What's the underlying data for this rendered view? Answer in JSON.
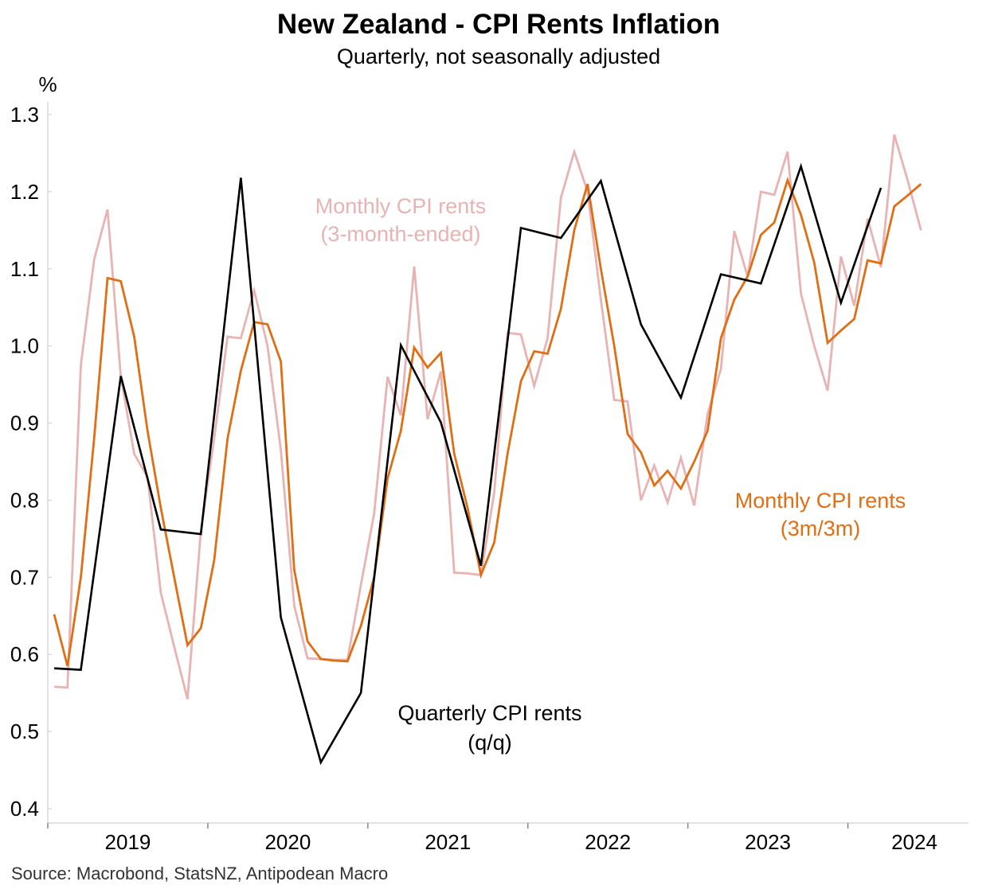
{
  "chart_data": {
    "type": "line",
    "title": "New Zealand - CPI Rents Inflation",
    "subtitle": "Quarterly, not seasonally adjusted",
    "ylabel": "%",
    "source": "Source: Macrobond, StatsNZ, Antipodean Macro",
    "ylim": [
      0.4,
      1.3
    ],
    "yticks": [
      "1.3",
      "1.2",
      "1.1",
      "1.0",
      "0.9",
      "0.8",
      "0.7",
      "0.6",
      "0.5",
      "0.4"
    ],
    "xlim": [
      "2019-01",
      "2024-07"
    ],
    "xticks": [
      "2019",
      "2020",
      "2021",
      "2022",
      "2023",
      "2024"
    ],
    "grid": false,
    "colors": {
      "quarterly": "#000000",
      "monthly_3m": "#E8B3B3",
      "monthly_3m3m": "#E06E14"
    },
    "annotations": {
      "pink": [
        "Monthly CPI rents",
        "(3-month-ended)"
      ],
      "orange": [
        "Monthly CPI rents",
        "(3m/3m)"
      ],
      "black": [
        "Quarterly CPI rents",
        "(q/q)"
      ]
    },
    "series": [
      {
        "key": "monthly_3m",
        "x": [
          "2019-01",
          "2019-02",
          "2019-03",
          "2019-04",
          "2019-05",
          "2019-06",
          "2019-07",
          "2019-08",
          "2019-09",
          "2019-10",
          "2019-11",
          "2019-12",
          "2020-01",
          "2020-02",
          "2020-03",
          "2020-04",
          "2020-05",
          "2020-06",
          "2020-07",
          "2020-08",
          "2020-09",
          "2020-10",
          "2020-11",
          "2020-12",
          "2021-01",
          "2021-02",
          "2021-03",
          "2021-04",
          "2021-05",
          "2021-06",
          "2021-07",
          "2021-08",
          "2021-09",
          "2021-10",
          "2021-11",
          "2021-12",
          "2022-01",
          "2022-02",
          "2022-03",
          "2022-04",
          "2022-05",
          "2022-06",
          "2022-07",
          "2022-08",
          "2022-09",
          "2022-10",
          "2022-11",
          "2022-12",
          "2023-01",
          "2023-02",
          "2023-03",
          "2023-04",
          "2023-05",
          "2023-06",
          "2023-07",
          "2023-08",
          "2023-09",
          "2023-10",
          "2023-11",
          "2023-12",
          "2024-01",
          "2024-02",
          "2024-03",
          "2024-04",
          "2024-05",
          "2024-06",
          "2024-07"
        ],
        "values": [
          0.558,
          0.557,
          0.975,
          1.112,
          1.177,
          0.96,
          0.86,
          0.83,
          0.68,
          0.61,
          0.542,
          0.76,
          0.88,
          1.012,
          1.01,
          1.072,
          1.0,
          0.865,
          0.663,
          0.595,
          0.594,
          0.593,
          0.593,
          0.69,
          0.783,
          0.96,
          0.91,
          1.103,
          0.905,
          0.967,
          0.706,
          0.705,
          0.703,
          0.81,
          1.017,
          1.015,
          0.948,
          1.01,
          1.192,
          1.252,
          1.2,
          1.06,
          0.93,
          0.928,
          0.8,
          0.845,
          0.797,
          0.855,
          0.793,
          0.912,
          0.97,
          1.149,
          1.09,
          1.2,
          1.196,
          1.252,
          1.068,
          1.0,
          0.942,
          1.116,
          1.052,
          1.165,
          1.102,
          1.274,
          1.215,
          1.15,
          null
        ]
      },
      {
        "key": "monthly_3m3m",
        "x": [
          "2019-01",
          "2019-02",
          "2019-03",
          "2019-04",
          "2019-05",
          "2019-06",
          "2019-07",
          "2019-08",
          "2019-09",
          "2019-10",
          "2019-11",
          "2019-12",
          "2020-01",
          "2020-02",
          "2020-03",
          "2020-04",
          "2020-05",
          "2020-06",
          "2020-07",
          "2020-08",
          "2020-09",
          "2020-10",
          "2020-11",
          "2020-12",
          "2021-01",
          "2021-02",
          "2021-03",
          "2021-04",
          "2021-05",
          "2021-06",
          "2021-07",
          "2021-08",
          "2021-09",
          "2021-10",
          "2021-11",
          "2021-12",
          "2022-01",
          "2022-02",
          "2022-03",
          "2022-04",
          "2022-05",
          "2022-06",
          "2022-07",
          "2022-08",
          "2022-09",
          "2022-10",
          "2022-11",
          "2022-12",
          "2023-01",
          "2023-02",
          "2023-03",
          "2023-04",
          "2023-05",
          "2023-06",
          "2023-07",
          "2023-08",
          "2023-09",
          "2023-10",
          "2023-11",
          "2023-12",
          "2024-01",
          "2024-02",
          "2024-03",
          "2024-04",
          "2024-05",
          "2024-06",
          "2024-07"
        ],
        "values": [
          0.652,
          0.585,
          0.7,
          0.88,
          1.088,
          1.084,
          1.012,
          0.89,
          0.79,
          0.7,
          0.612,
          0.634,
          0.722,
          0.88,
          0.968,
          1.031,
          1.028,
          0.98,
          0.71,
          0.617,
          0.594,
          0.592,
          0.591,
          0.637,
          0.7,
          0.828,
          0.89,
          0.998,
          0.972,
          0.991,
          0.86,
          0.79,
          0.703,
          0.745,
          0.86,
          0.954,
          0.993,
          0.99,
          1.048,
          1.15,
          1.21,
          1.1,
          1.0,
          0.886,
          0.862,
          0.819,
          0.838,
          0.815,
          0.85,
          0.89,
          1.01,
          1.06,
          1.09,
          1.144,
          1.16,
          1.215,
          1.17,
          1.108,
          1.004,
          1.02,
          1.035,
          1.111,
          1.107,
          1.181,
          1.195,
          1.21,
          null
        ]
      },
      {
        "key": "quarterly",
        "x": [
          "2019-01",
          "2019-03",
          "2019-06",
          "2019-09",
          "2019-12",
          "2020-03",
          "2020-06",
          "2020-09",
          "2020-12",
          "2021-03",
          "2021-06",
          "2021-09",
          "2021-12",
          "2022-03",
          "2022-06",
          "2022-09",
          "2022-12",
          "2023-03",
          "2023-06",
          "2023-09",
          "2023-12",
          "2024-03"
        ],
        "values": [
          0.582,
          0.58,
          0.961,
          0.762,
          0.756,
          1.218,
          0.648,
          0.46,
          0.55,
          1.001,
          0.901,
          0.715,
          1.153,
          1.14,
          1.214,
          1.028,
          0.933,
          1.093,
          1.081,
          1.233,
          1.056,
          1.205
        ]
      }
    ]
  }
}
